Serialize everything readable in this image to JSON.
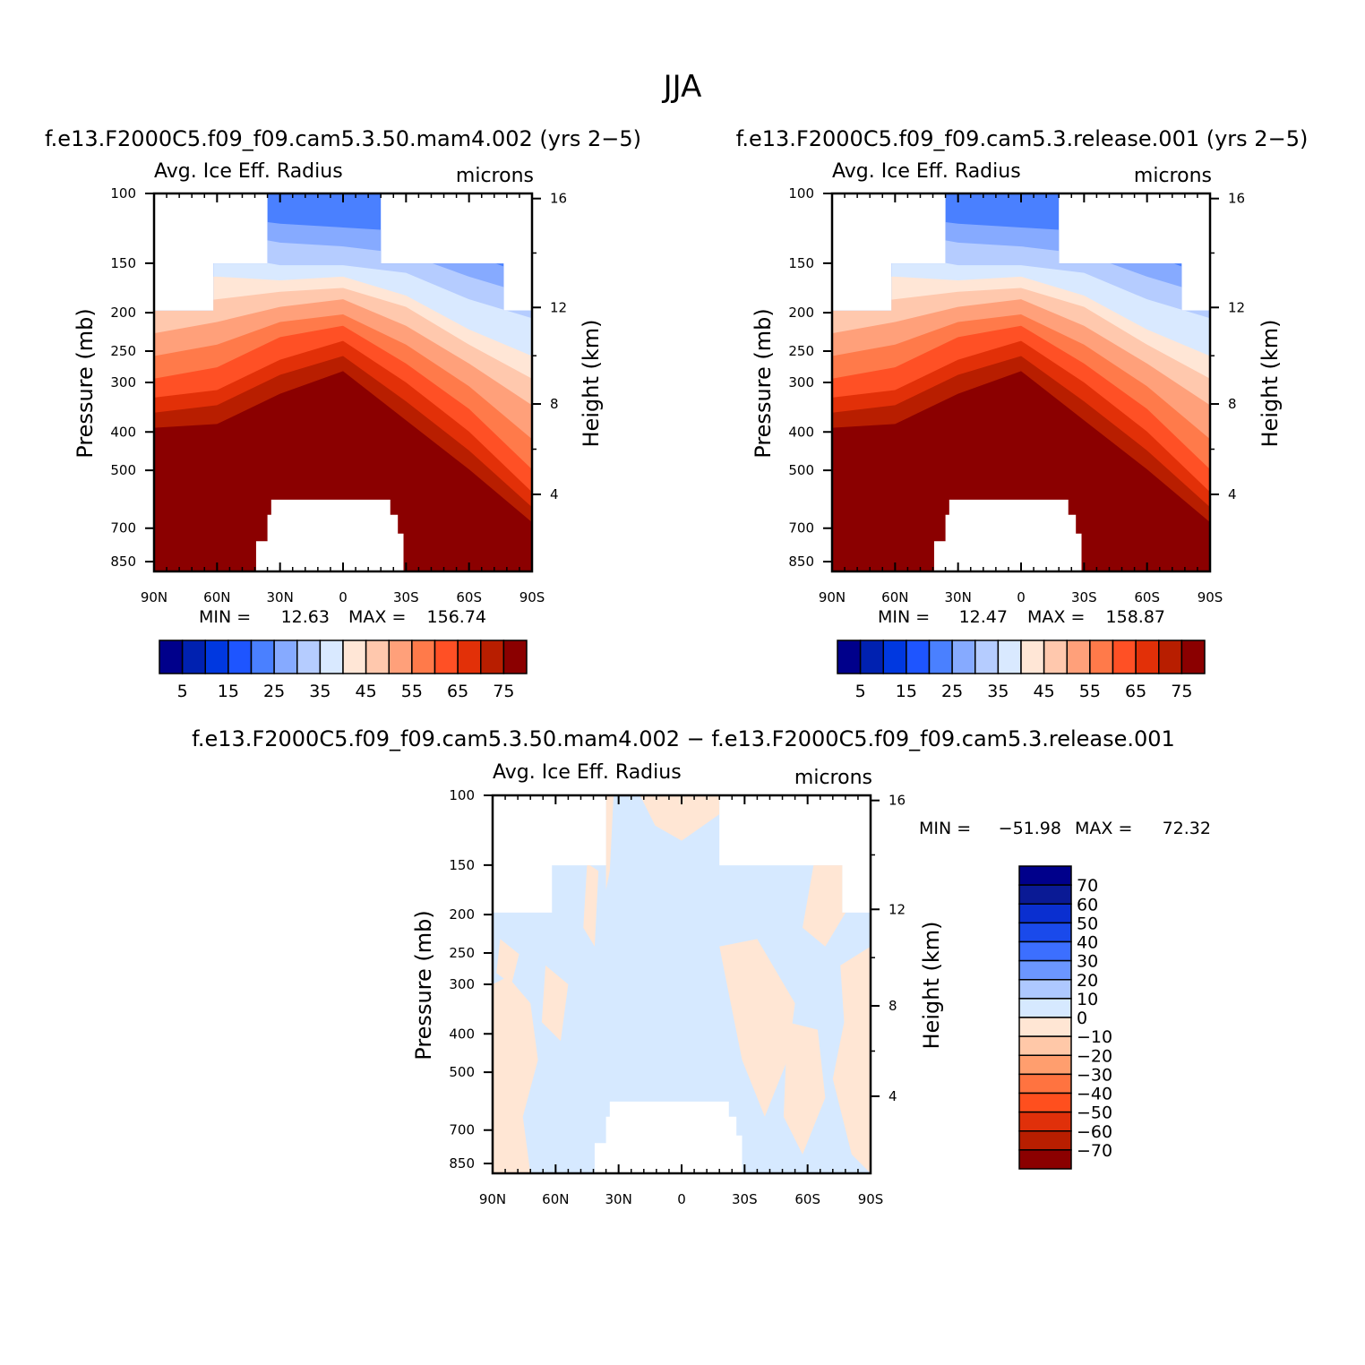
{
  "figure": {
    "title": "JJA"
  },
  "colors": {
    "levels14": [
      "#00008b",
      "#0021b0",
      "#0038e0",
      "#1e55ff",
      "#4a80ff",
      "#86aaff",
      "#b5ccff",
      "#d9e9ff",
      "#ffe6d6",
      "#ffc8ad",
      "#ffa07a",
      "#ff7a4a",
      "#ff5025",
      "#e23008",
      "#b81e00",
      "#8b0000"
    ],
    "diff": [
      "#00008b",
      "#0a1a95",
      "#0a2fd0",
      "#1a4aeb",
      "#3c6fff",
      "#6b96ff",
      "#aec8ff",
      "#d6e9ff",
      "#ffe6d4",
      "#ffc8a8",
      "#ff9e6e",
      "#ff7340",
      "#ff4f1e",
      "#e0300a",
      "#b81e00",
      "#8b0000"
    ]
  },
  "panels": [
    {
      "id": "model",
      "title": "f.e13.F2000C5.f09_f09.cam5.3.50.mam4.002 (yrs 2−5)",
      "left_label": "Avg. Ice Eff. Radius",
      "right_label": "microns",
      "ylabel": "Pressure (mb)",
      "ylabel_right": "Height (km)",
      "stats": {
        "min_label": "MIN =",
        "min": "12.63",
        "max_label": "MAX =",
        "max": "156.74"
      }
    },
    {
      "id": "control",
      "title": "f.e13.F2000C5.f09_f09.cam5.3.release.001 (yrs 2−5)",
      "left_label": "Avg. Ice Eff. Radius",
      "right_label": "microns",
      "ylabel": "Pressure (mb)",
      "ylabel_right": "Height (km)",
      "stats": {
        "min_label": "MIN =",
        "min": "12.47",
        "max_label": "MAX =",
        "max": "158.87"
      }
    },
    {
      "id": "difference",
      "title": "f.e13.F2000C5.f09_f09.cam5.3.50.mam4.002 − f.e13.F2000C5.f09_f09.cam5.3.release.001",
      "left_label": "Avg. Ice Eff. Radius",
      "right_label": "microns",
      "ylabel": "Pressure (mb)",
      "ylabel_right": "Height (km)",
      "stats": {
        "min_label": "MIN =",
        "min": "−51.98",
        "max_label": "MAX =",
        "max": "72.32"
      }
    }
  ],
  "axes": {
    "x_ticks": [
      "90N",
      "60N",
      "30N",
      "0",
      "30S",
      "60S",
      "90S"
    ],
    "p_ticks": [
      "100",
      "150",
      "200",
      "250",
      "300",
      "400",
      "500",
      "700",
      "850"
    ],
    "z_ticks": [
      "16",
      "12",
      "8",
      "4"
    ]
  },
  "colorbars": {
    "abs_labels": [
      "5",
      "15",
      "25",
      "35",
      "45",
      "55",
      "65",
      "75"
    ],
    "diff_labels": [
      "70",
      "60",
      "50",
      "40",
      "30",
      "20",
      "10",
      "0",
      "−10",
      "−20",
      "−30",
      "−40",
      "−50",
      "−60",
      "−70"
    ]
  },
  "chart_data": [
    {
      "type": "heatmap",
      "title": "f.e13.F2000C5.f09_f09.cam5.3.50.mam4.002 (yrs 2−5)",
      "variable": "Avg. Ice Eff. Radius",
      "units": "microns",
      "xlabel": "",
      "ylabel": "Pressure (mb)",
      "ylabel_right": "Height (km)",
      "x": [
        "90N",
        "60N",
        "30N",
        "0",
        "30S",
        "60S",
        "90S"
      ],
      "y": [
        "100",
        "150",
        "200",
        "250",
        "300",
        "400",
        "500",
        "700",
        "850"
      ],
      "contour_levels": [
        5,
        10,
        15,
        20,
        25,
        30,
        35,
        40,
        45,
        50,
        55,
        60,
        65,
        70,
        75
      ],
      "min": 12.63,
      "max": 156.74
    },
    {
      "type": "heatmap",
      "title": "f.e13.F2000C5.f09_f09.cam5.3.release.001 (yrs 2−5)",
      "variable": "Avg. Ice Eff. Radius",
      "units": "microns",
      "xlabel": "",
      "ylabel": "Pressure (mb)",
      "ylabel_right": "Height (km)",
      "x": [
        "90N",
        "60N",
        "30N",
        "0",
        "30S",
        "60S",
        "90S"
      ],
      "y": [
        "100",
        "150",
        "200",
        "250",
        "300",
        "400",
        "500",
        "700",
        "850"
      ],
      "contour_levels": [
        5,
        10,
        15,
        20,
        25,
        30,
        35,
        40,
        45,
        50,
        55,
        60,
        65,
        70,
        75
      ],
      "min": 12.47,
      "max": 158.87
    },
    {
      "type": "heatmap",
      "title": "f.e13.F2000C5.f09_f09.cam5.3.50.mam4.002 − f.e13.F2000C5.f09_f09.cam5.3.release.001",
      "variable": "Avg. Ice Eff. Radius",
      "units": "microns",
      "xlabel": "",
      "ylabel": "Pressure (mb)",
      "ylabel_right": "Height (km)",
      "x": [
        "90N",
        "60N",
        "30N",
        "0",
        "30S",
        "60S",
        "90S"
      ],
      "y": [
        "100",
        "150",
        "200",
        "250",
        "300",
        "400",
        "500",
        "700",
        "850"
      ],
      "contour_levels": [
        -70,
        -60,
        -50,
        -40,
        -30,
        -20,
        -10,
        0,
        10,
        20,
        30,
        40,
        50,
        60,
        70
      ],
      "min": -51.98,
      "max": 72.32
    }
  ]
}
